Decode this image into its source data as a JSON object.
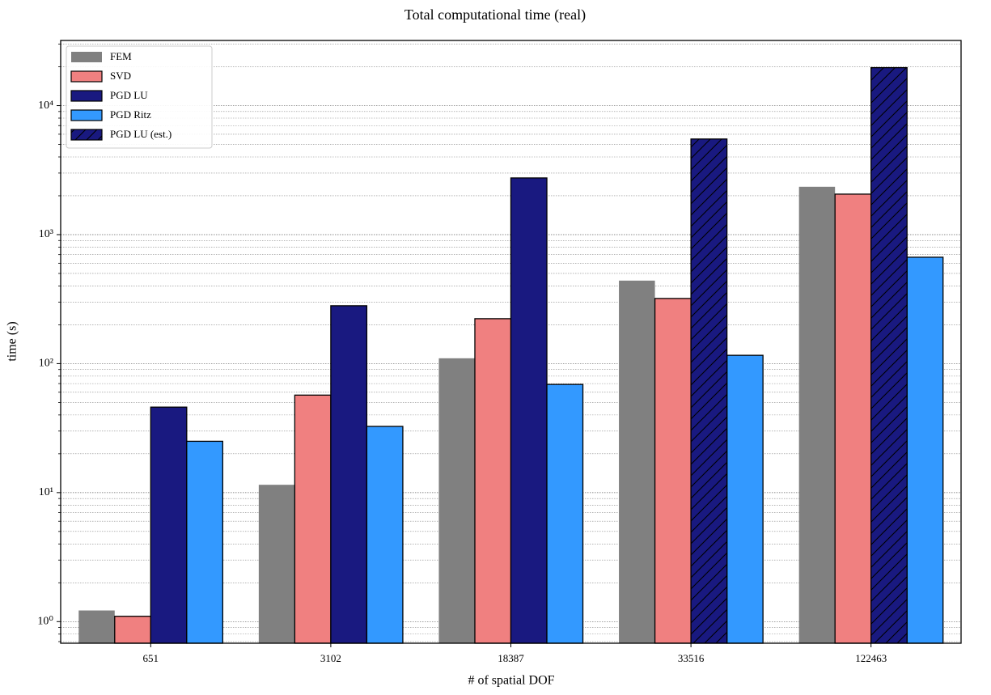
{
  "chart_data": {
    "type": "bar",
    "title": "Total computational time (real)",
    "xlabel": "# of spatial DOF",
    "ylabel": "time (s)",
    "categories": [
      "651",
      "3102",
      "18387",
      "33516",
      "122463"
    ],
    "series": [
      {
        "name": "FEM",
        "color": "#808080",
        "values": [
          1.22,
          11.5,
          110,
          440,
          2350
        ]
      },
      {
        "name": "SVD",
        "color": "#f08080",
        "edgecolor": "#000000",
        "values": [
          1.1,
          57,
          223,
          320,
          2060
        ]
      },
      {
        "name": "PGD LU",
        "color": "#191980",
        "edgecolor": "#000000",
        "values": [
          46,
          281,
          2750,
          null,
          null
        ]
      },
      {
        "name": "PGD Ritz",
        "color": "#3399ff",
        "edgecolor": "#000000",
        "values": [
          25,
          32.6,
          69,
          116,
          668
        ]
      },
      {
        "name": "PGD LU (est.)",
        "color": "#191980",
        "edgecolor": "#000000",
        "hatch": "/",
        "values": [
          null,
          null,
          null,
          5510,
          19700
        ]
      }
    ],
    "ylog": true,
    "ylim": [
      0.68,
      32000
    ],
    "yticks": [
      {
        "value": 1,
        "label": "10⁰"
      },
      {
        "value": 10,
        "label": "10¹"
      },
      {
        "value": 100,
        "label": "10²"
      },
      {
        "value": 1000,
        "label": "10³"
      },
      {
        "value": 10000,
        "label": "10⁴"
      }
    ],
    "yticks_minor": [
      0.7,
      0.8,
      0.9,
      2,
      3,
      4,
      5,
      6,
      7,
      8,
      9,
      20,
      30,
      40,
      50,
      60,
      70,
      80,
      90,
      200,
      300,
      400,
      500,
      600,
      700,
      800,
      900,
      2000,
      3000,
      4000,
      5000,
      6000,
      7000,
      8000,
      9000,
      20000,
      30000
    ],
    "grid": true,
    "legend": "upper left"
  }
}
